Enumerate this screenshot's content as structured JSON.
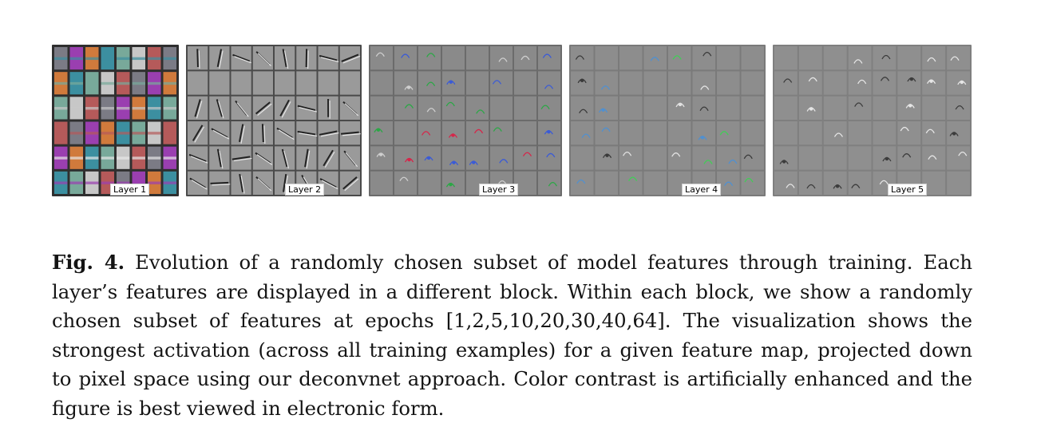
{
  "figure": {
    "layers": [
      {
        "id": "layer1",
        "label": "Layer 1",
        "tiles": "color-patches",
        "palette": [
          "#7b7b85",
          "#9a3fb0",
          "#d07a3c",
          "#3c8fa0",
          "#78a99a",
          "#c7c7c7",
          "#b55a5a"
        ]
      },
      {
        "id": "layer2",
        "label": "Layer 2",
        "tiles": "edge-strokes",
        "palette": [
          "#9a9a9a",
          "#222222",
          "#e6e6e6"
        ]
      },
      {
        "id": "layer3",
        "label": "Layer 3",
        "tiles": "textures",
        "palette": [
          "#8a8a8a",
          "#2aa845",
          "#d6264a",
          "#3b5bd6",
          "#cfcfcf"
        ]
      },
      {
        "id": "layer4",
        "label": "Layer 4",
        "tiles": "parts",
        "palette": [
          "#8d8d8d",
          "#3fcf55",
          "#e2e2e2",
          "#3a3a3a",
          "#5090d0"
        ]
      },
      {
        "id": "layer5",
        "label": "Layer 5",
        "tiles": "objects",
        "palette": [
          "#8f8f8f",
          "#e6e6e6",
          "#3c3c3c"
        ]
      }
    ]
  },
  "caption": {
    "fig_label": "Fig. 4.",
    "text": " Evolution of a randomly chosen subset of model features through training. Each layer’s features are displayed in a different block. Within each block, we show a randomly chosen subset of features at epochs [1,2,5,10,20,30,40,64]. The visualization shows the strongest activation (across all training examples) for a given feature map, projected down to pixel space using our deconvnet approach. Color contrast is artificially enhanced and the figure is best viewed in electronic form."
  }
}
